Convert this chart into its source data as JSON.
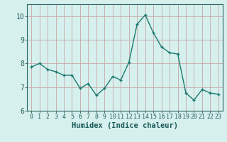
{
  "x": [
    0,
    1,
    2,
    3,
    4,
    5,
    6,
    7,
    8,
    9,
    10,
    11,
    12,
    13,
    14,
    15,
    16,
    17,
    18,
    19,
    20,
    21,
    22,
    23
  ],
  "y": [
    7.85,
    8.0,
    7.75,
    7.65,
    7.5,
    7.5,
    6.95,
    7.15,
    6.65,
    6.95,
    7.45,
    7.3,
    8.05,
    9.65,
    10.05,
    9.3,
    8.7,
    8.45,
    8.4,
    6.75,
    6.45,
    6.9,
    6.75,
    6.7
  ],
  "line_color": "#1a7a6e",
  "marker": "P",
  "marker_size": 2.5,
  "bg_color": "#d6f0ee",
  "grid_color": "#c8a8a8",
  "axis_color": "#2a6060",
  "xlabel": "Humidex (Indice chaleur)",
  "xlim": [
    -0.5,
    23.5
  ],
  "ylim": [
    6,
    10.5
  ],
  "yticks": [
    6,
    7,
    8,
    9,
    10
  ],
  "xticks": [
    0,
    1,
    2,
    3,
    4,
    5,
    6,
    7,
    8,
    9,
    10,
    11,
    12,
    13,
    14,
    15,
    16,
    17,
    18,
    19,
    20,
    21,
    22,
    23
  ],
  "title_color": "#1a5a5a",
  "font_size": 6.0
}
